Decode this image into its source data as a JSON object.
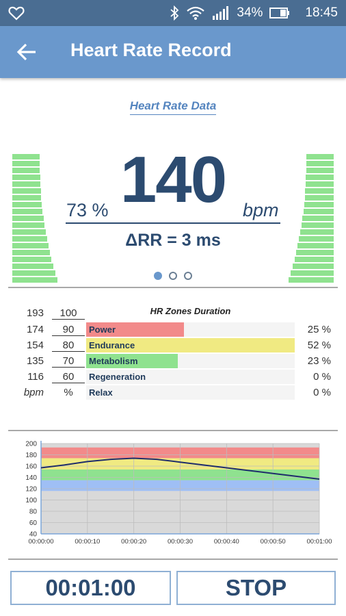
{
  "status_bar": {
    "battery": "34%",
    "time": "18:45",
    "icons": [
      "heart-outline-icon",
      "bluetooth-icon",
      "wifi-icon",
      "signal-icon",
      "battery-icon"
    ]
  },
  "app_bar": {
    "title": "Heart Rate Record",
    "back_icon": "arrow-left-icon"
  },
  "heart_rate": {
    "section_title": "Heart Rate Data",
    "value": "140",
    "percent": "73 %",
    "unit": "bpm",
    "delta_rr": "ΔRR = 3 ms",
    "pager": {
      "pages": 3,
      "active": 0
    }
  },
  "zones": {
    "title": "HR Zones Duration",
    "top_bpm": "193",
    "top_pct": "100",
    "rows": [
      {
        "bpm": "174",
        "pct": "90",
        "name": "Power",
        "duration": "25 %",
        "fraction": 0.47,
        "color": "#f28a8a"
      },
      {
        "bpm": "154",
        "pct": "80",
        "name": "Endurance",
        "duration": "52 %",
        "fraction": 1.0,
        "color": "#f0ea82"
      },
      {
        "bpm": "135",
        "pct": "70",
        "name": "Metabolism",
        "duration": "23 %",
        "fraction": 0.44,
        "color": "#8fe28f"
      },
      {
        "bpm": "116",
        "pct": "60",
        "name": "Regeneration",
        "duration": "0 %",
        "fraction": 0,
        "color": "#9fbff5"
      },
      {
        "bpm": "bpm",
        "pct": "%",
        "name": "Relax",
        "duration": "0 %",
        "fraction": 0,
        "color": "#cccccc"
      }
    ]
  },
  "chart_data": {
    "type": "line",
    "y_ticks": [
      "200",
      "180",
      "160",
      "140",
      "120",
      "100",
      "80",
      "60",
      "40"
    ],
    "ylim": [
      40,
      200
    ],
    "x_ticks": [
      "00:00:00",
      "00:00:10",
      "00:00:20",
      "00:00:30",
      "00:00:40",
      "00:00:50",
      "00:01:00"
    ],
    "xlim": [
      0,
      60
    ],
    "bands": [
      {
        "from": 174,
        "to": 193,
        "color": "#f28a8a"
      },
      {
        "from": 154,
        "to": 174,
        "color": "#f0ea82"
      },
      {
        "from": 135,
        "to": 154,
        "color": "#8fe28f"
      },
      {
        "from": 116,
        "to": 135,
        "color": "#9fbff5"
      }
    ],
    "series": [
      {
        "x": [
          0,
          5,
          10,
          15,
          20,
          25,
          30,
          35,
          40,
          45,
          50,
          55,
          60
        ],
        "y": [
          157,
          162,
          168,
          172,
          174,
          172,
          167,
          162,
          157,
          152,
          147,
          142,
          137
        ]
      }
    ],
    "grid": true,
    "line_color": "#1f2d6b"
  },
  "controls": {
    "timer": "00:01:00",
    "stop_label": "STOP"
  }
}
